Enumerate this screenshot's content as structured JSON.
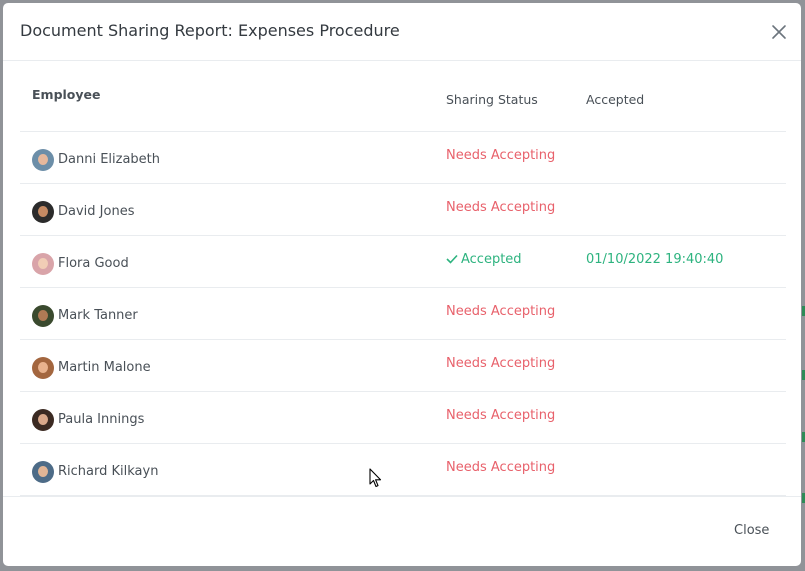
{
  "modal": {
    "title": "Document Sharing Report: Expenses Procedure",
    "close_label": "Close",
    "close_icon": "close-x-icon"
  },
  "table": {
    "headers": {
      "employee": "Employee",
      "sharing_status": "Sharing Status",
      "accepted": "Accepted"
    },
    "rows": [
      {
        "name": "Danni Elizabeth",
        "status": "Needs Accepting",
        "accepted": "",
        "status_type": "needs",
        "avatar_hair": "#6c8ea8",
        "avatar_face": "#e6b89c"
      },
      {
        "name": "David Jones",
        "status": "Needs Accepting",
        "accepted": "",
        "status_type": "needs",
        "avatar_hair": "#2b2b2b",
        "avatar_face": "#c58a63"
      },
      {
        "name": "Flora Good",
        "status": "Accepted",
        "accepted": "01/10/2022 19:40:40",
        "status_type": "accepted",
        "avatar_hair": "#d9a4a9",
        "avatar_face": "#f1cdb6"
      },
      {
        "name": "Mark Tanner",
        "status": "Needs Accepting",
        "accepted": "",
        "status_type": "needs",
        "avatar_hair": "#3a4a2e",
        "avatar_face": "#b07a55"
      },
      {
        "name": "Martin Malone",
        "status": "Needs Accepting",
        "accepted": "",
        "status_type": "needs",
        "avatar_hair": "#a3663f",
        "avatar_face": "#e8b28e"
      },
      {
        "name": "Paula Innings",
        "status": "Needs Accepting",
        "accepted": "",
        "status_type": "needs",
        "avatar_hair": "#3b2a22",
        "avatar_face": "#d9a88a"
      },
      {
        "name": "Richard Kilkayn",
        "status": "Needs Accepting",
        "accepted": "",
        "status_type": "needs",
        "avatar_hair": "#4d6b87",
        "avatar_face": "#e1b596"
      }
    ]
  },
  "colors": {
    "needs_accepting": "#e8616b",
    "accepted": "#2db37f"
  }
}
